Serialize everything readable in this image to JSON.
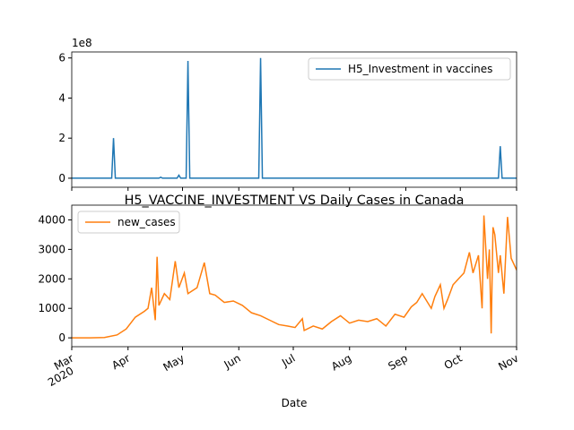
{
  "chart_data": [
    {
      "type": "line",
      "y_offset_label": "1e8",
      "legend": "upper right",
      "xlim": [
        0,
        245
      ],
      "ylim": [
        -0.45,
        6.3
      ],
      "yticks": [
        0,
        2,
        4,
        6
      ],
      "x": [
        0,
        22,
        23,
        24,
        48,
        49,
        50,
        58,
        59,
        60,
        63,
        64,
        65,
        103,
        104,
        105,
        235,
        236,
        237,
        245
      ],
      "series": [
        {
          "name": "H5_Investment in vaccines",
          "color": "#1f77b4",
          "values": [
            0,
            0,
            2.0,
            0,
            0,
            0.05,
            0,
            0,
            0.15,
            0,
            0,
            5.85,
            0,
            0,
            6.0,
            0,
            0,
            1.6,
            0,
            0
          ]
        }
      ]
    },
    {
      "type": "line",
      "title": "H5_VACCINE_INVESTMENT VS Daily Cases in Canada",
      "xlabel": "Date",
      "x_year_label": "2020",
      "legend": "upper left",
      "xlim": [
        0,
        245
      ],
      "ylim": [
        -300,
        4500
      ],
      "yticks": [
        0,
        1000,
        2000,
        3000,
        4000
      ],
      "xticks": [
        {
          "value": 0,
          "label": "Mar"
        },
        {
          "value": 31,
          "label": "Apr"
        },
        {
          "value": 61,
          "label": "May"
        },
        {
          "value": 92,
          "label": "Jun"
        },
        {
          "value": 122,
          "label": "Jul"
        },
        {
          "value": 153,
          "label": "Aug"
        },
        {
          "value": 184,
          "label": "Sep"
        },
        {
          "value": 214,
          "label": "Oct"
        },
        {
          "value": 245,
          "label": "Nov"
        }
      ],
      "x": [
        0,
        10,
        18,
        25,
        30,
        35,
        40,
        42,
        44,
        46,
        47,
        48,
        51,
        54,
        57,
        59,
        62,
        64,
        69,
        73,
        76,
        79,
        84,
        89,
        94,
        99,
        104,
        109,
        114,
        119,
        123,
        127,
        128,
        133,
        138,
        143,
        148,
        153,
        158,
        163,
        168,
        173,
        178,
        183,
        187,
        190,
        193,
        198,
        200,
        203,
        205,
        207,
        210,
        213,
        216,
        219,
        221,
        224,
        226,
        227,
        229,
        230,
        231,
        232,
        233,
        235,
        236,
        238,
        240,
        242,
        245
      ],
      "series": [
        {
          "name": "new_cases",
          "color": "#ff7f0e",
          "values": [
            0,
            0,
            10,
            100,
            300,
            700,
            900,
            1000,
            1700,
            600,
            2750,
            1100,
            1500,
            1300,
            2600,
            1700,
            2200,
            1500,
            1700,
            2550,
            1500,
            1450,
            1200,
            1250,
            1100,
            850,
            750,
            600,
            450,
            400,
            350,
            650,
            250,
            400,
            300,
            550,
            750,
            500,
            600,
            550,
            650,
            400,
            800,
            700,
            1050,
            1200,
            1500,
            1000,
            1400,
            1800,
            1000,
            1300,
            1800,
            2000,
            2200,
            2900,
            2200,
            2800,
            1000,
            4150,
            2000,
            3000,
            150,
            3750,
            3500,
            2200,
            2800,
            1500,
            4100,
            2700,
            2300
          ]
        }
      ]
    }
  ]
}
